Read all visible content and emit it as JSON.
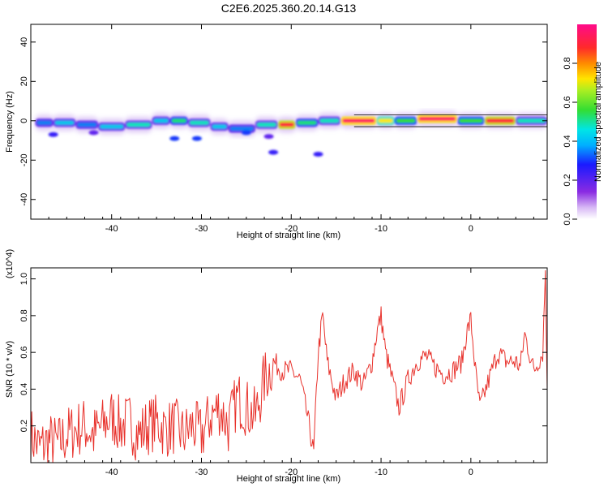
{
  "title": "C2E6.2025.360.20.14.G13",
  "colors": {
    "snr_line": "#e8322c",
    "frame": "#000000",
    "ridge": [
      "#8a2be2",
      "#1a1aff",
      "#00e5ff",
      "#33dd33",
      "#ffe500",
      "#ff8a00",
      "#ff2040"
    ]
  },
  "chart_data": [
    {
      "type": "heatmap",
      "title": "C2E6.2025.360.20.14.G13",
      "xlabel": "Height of straight line (km)",
      "ylabel": "Frequency (Hz)",
      "xlim": [
        -49,
        8.5
      ],
      "ylim": [
        -50,
        49
      ],
      "x_ticks": [
        -40,
        -30,
        -20,
        -10,
        0
      ],
      "y_ticks": [
        -40,
        -20,
        0,
        20,
        40
      ],
      "grid": false,
      "colorbar": {
        "label": "Normalized spectral amplitude",
        "range": [
          0.0,
          1.0
        ],
        "ticks": [
          "0.0",
          "0.2",
          "0.4",
          "0.6",
          "0.8"
        ],
        "colormap": "purple-blue-cyan-green-yellow-red-magenta"
      },
      "ridge_segments": [
        {
          "x0": -48.5,
          "x1": -46.5,
          "freq": -1,
          "amp": 0.35
        },
        {
          "x0": -46.5,
          "x1": -44.0,
          "freq": -1,
          "amp": 0.4
        },
        {
          "x0": -44.0,
          "x1": -41.5,
          "freq": -2,
          "amp": 0.35
        },
        {
          "x0": -41.5,
          "x1": -38.5,
          "freq": -3,
          "amp": 0.4
        },
        {
          "x0": -38.5,
          "x1": -35.5,
          "freq": -2,
          "amp": 0.45
        },
        {
          "x0": -35.5,
          "x1": -33.5,
          "freq": 0,
          "amp": 0.4
        },
        {
          "x0": -33.5,
          "x1": -31.5,
          "freq": 0,
          "amp": 0.5
        },
        {
          "x0": -31.5,
          "x1": -29.0,
          "freq": -1,
          "amp": 0.45
        },
        {
          "x0": -29.0,
          "x1": -27.0,
          "freq": -3,
          "amp": 0.4
        },
        {
          "x0": -27.0,
          "x1": -24.0,
          "freq": -4,
          "amp": 0.35
        },
        {
          "x0": -24.0,
          "x1": -21.5,
          "freq": -2,
          "amp": 0.45
        },
        {
          "x0": -21.5,
          "x1": -19.5,
          "freq": -2,
          "amp": 0.9
        },
        {
          "x0": -19.5,
          "x1": -17.0,
          "freq": -1,
          "amp": 0.5
        },
        {
          "x0": -17.0,
          "x1": -14.5,
          "freq": 0,
          "amp": 0.45
        },
        {
          "x0": -14.5,
          "x1": -10.5,
          "freq": 0,
          "amp": 0.95
        },
        {
          "x0": -10.5,
          "x1": -8.5,
          "freq": 0,
          "amp": 0.7
        },
        {
          "x0": -8.5,
          "x1": -6.0,
          "freq": 0,
          "amp": 0.55
        },
        {
          "x0": -6.0,
          "x1": -1.5,
          "freq": 1,
          "amp": 0.95
        },
        {
          "x0": -1.5,
          "x1": 1.5,
          "freq": 0,
          "amp": 0.55
        },
        {
          "x0": 1.5,
          "x1": 5.0,
          "freq": 0,
          "amp": 0.9
        },
        {
          "x0": 5.0,
          "x1": 8.5,
          "freq": 0,
          "amp": 0.45
        }
      ],
      "scatter_blobs": [
        {
          "x": -33.0,
          "freq": -9,
          "amp": 0.3
        },
        {
          "x": -30.5,
          "freq": -9,
          "amp": 0.3
        },
        {
          "x": -25.0,
          "freq": -6,
          "amp": 0.3
        },
        {
          "x": -22.5,
          "freq": -8,
          "amp": 0.2
        },
        {
          "x": -22.0,
          "freq": -16,
          "amp": 0.25
        },
        {
          "x": -17.0,
          "freq": -17,
          "amp": 0.25
        },
        {
          "x": -46.5,
          "freq": -7,
          "amp": 0.25
        },
        {
          "x": -42.0,
          "freq": -6,
          "amp": 0.2
        }
      ]
    },
    {
      "type": "line",
      "xlabel": "Height of straight line (km)",
      "ylabel": "SNR (10 * v/v)",
      "y_multiplier": "(x10^4)",
      "xlim": [
        -49,
        8.5
      ],
      "ylim": [
        0.0,
        1.06
      ],
      "x_ticks": [
        -40,
        -30,
        -20,
        -10,
        0
      ],
      "y_ticks": [
        0.2,
        0.4,
        0.6,
        0.8,
        1.0
      ],
      "grid": false,
      "series": [
        {
          "name": "SNR",
          "x": [
            -49,
            -48,
            -47,
            -46,
            -45,
            -44,
            -43,
            -42,
            -41,
            -40,
            -39,
            -38,
            -37,
            -36,
            -35,
            -34,
            -33,
            -32,
            -31,
            -30,
            -29,
            -28,
            -27,
            -26,
            -25,
            -24,
            -23,
            -22,
            -21,
            -20,
            -19,
            -18,
            -17.5,
            -17,
            -16.5,
            -16,
            -15,
            -14,
            -13,
            -12,
            -11,
            -10.5,
            -10,
            -9.5,
            -9,
            -8,
            -7,
            -6,
            -5,
            -4,
            -3,
            -2,
            -1,
            -0.5,
            0,
            0.5,
            1,
            2,
            3,
            4,
            5,
            5.5,
            6,
            7,
            8,
            8.3,
            8.5
          ],
          "values": [
            0.15,
            0.08,
            0.12,
            0.1,
            0.15,
            0.18,
            0.2,
            0.15,
            0.2,
            0.25,
            0.2,
            0.22,
            0.15,
            0.2,
            0.22,
            0.18,
            0.2,
            0.15,
            0.2,
            0.15,
            0.25,
            0.3,
            0.2,
            0.35,
            0.3,
            0.25,
            0.45,
            0.55,
            0.5,
            0.5,
            0.45,
            0.2,
            0.05,
            0.6,
            0.8,
            0.55,
            0.35,
            0.45,
            0.5,
            0.42,
            0.55,
            0.7,
            0.8,
            0.6,
            0.5,
            0.3,
            0.45,
            0.55,
            0.58,
            0.52,
            0.48,
            0.5,
            0.55,
            0.7,
            0.78,
            0.5,
            0.3,
            0.45,
            0.6,
            0.55,
            0.55,
            0.52,
            0.7,
            0.5,
            0.6,
            1.05,
            0.4
          ]
        }
      ]
    }
  ]
}
